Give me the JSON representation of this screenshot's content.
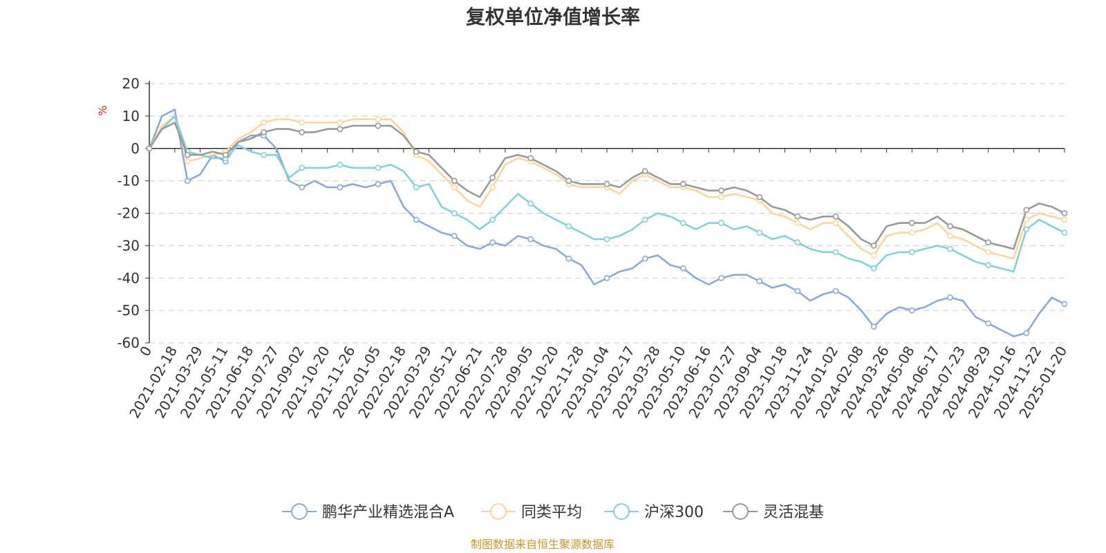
{
  "chart_data": {
    "type": "line",
    "title": "复权单位净值增长率",
    "ylabel": "%",
    "xlabel": "",
    "ylim": [
      -60,
      20
    ],
    "yticks": [
      20,
      10,
      0,
      -10,
      -20,
      -30,
      -40,
      -50,
      -60
    ],
    "grid": true,
    "legend": "bottom",
    "source": "制图数据来自恒生聚源数据库",
    "x_ticks": [
      "0",
      "2021-02-18",
      "2021-03-29",
      "2021-05-11",
      "2021-06-18",
      "2021-07-27",
      "2021-09-02",
      "2021-10-20",
      "2021-11-26",
      "2022-01-05",
      "2022-02-18",
      "2022-03-29",
      "2022-05-12",
      "2022-06-21",
      "2022-07-28",
      "2022-09-05",
      "2022-10-20",
      "2022-11-28",
      "2023-01-04",
      "2023-02-17",
      "2023-03-28",
      "2023-05-10",
      "2023-06-16",
      "2023-07-27",
      "2023-09-04",
      "2023-10-18",
      "2023-11-24",
      "2024-01-02",
      "2024-02-08",
      "2024-03-26",
      "2024-05-08",
      "2024-06-17",
      "2024-07-23",
      "2024-08-29",
      "2024-10-16",
      "2024-11-22",
      "2025-01-20"
    ],
    "x": [
      0,
      0.5,
      1,
      1.5,
      2,
      2.5,
      3,
      3.5,
      4,
      4.5,
      5,
      5.5,
      6,
      6.5,
      7,
      7.5,
      8,
      8.5,
      9,
      9.5,
      10,
      10.5,
      11,
      11.5,
      12,
      12.5,
      13,
      13.5,
      14,
      14.5,
      15,
      15.5,
      16,
      16.5,
      17,
      17.5,
      18,
      18.5,
      19,
      19.5,
      20,
      20.5,
      21,
      21.5,
      22,
      22.5,
      23,
      23.5,
      24,
      24.5,
      25,
      25.5,
      26,
      26.5,
      27,
      27.5,
      28,
      28.5,
      29,
      29.5,
      30,
      30.5,
      31,
      31.5,
      32,
      32.5,
      33,
      33.5,
      34,
      34.5,
      35,
      35.5,
      36
    ],
    "series": [
      {
        "name": "鹏华产业精选混合A",
        "color": "#8aa9d8",
        "values": [
          0,
          10,
          12,
          -10,
          -8,
          -2,
          -4,
          2,
          4,
          4,
          0,
          -10,
          -12,
          -10,
          -12,
          -12,
          -11,
          -12,
          -11,
          -10,
          -18,
          -22,
          -24,
          -26,
          -27,
          -30,
          -31,
          -29,
          -30,
          -27,
          -28,
          -30,
          -31,
          -34,
          -36,
          -42,
          -40,
          -38,
          -37,
          -34,
          -33,
          -36,
          -37,
          -40,
          -42,
          -40,
          -39,
          -39,
          -41,
          -43,
          -42,
          -44,
          -47,
          -45,
          -44,
          -46,
          -50,
          -55,
          -51,
          -49,
          -50,
          -49,
          -47,
          -46,
          -47,
          -52,
          -54,
          -56,
          -58,
          -57,
          -51,
          -46,
          -48
        ]
      },
      {
        "name": "同类平均",
        "color": "#fdd49b",
        "values": [
          0,
          7,
          10,
          -4,
          -3,
          -2,
          -1,
          3,
          5,
          8,
          9,
          9,
          8,
          8,
          8,
          8,
          9,
          9,
          9,
          9,
          5,
          -2,
          -4,
          -8,
          -12,
          -16,
          -18,
          -12,
          -5,
          -3,
          -4,
          -6,
          -8,
          -11,
          -12,
          -12,
          -12,
          -14,
          -10,
          -8,
          -10,
          -12,
          -12,
          -13,
          -15,
          -15,
          -14,
          -15,
          -16,
          -20,
          -21,
          -23,
          -25,
          -23,
          -23,
          -27,
          -31,
          -33,
          -27,
          -26,
          -26,
          -25,
          -23,
          -27,
          -28,
          -30,
          -32,
          -33,
          -34,
          -22,
          -20,
          -21,
          -22
        ]
      },
      {
        "name": "沪深300",
        "color": "#7ed3d7",
        "values": [
          0,
          6,
          10,
          -1,
          -2,
          -3,
          -3,
          1,
          -1,
          -2,
          -2,
          -9,
          -6,
          -6,
          -6,
          -5,
          -6,
          -6,
          -6,
          -5,
          -7,
          -12,
          -11,
          -18,
          -20,
          -22,
          -25,
          -22,
          -18,
          -14,
          -17,
          -20,
          -22,
          -24,
          -26,
          -28,
          -28,
          -27,
          -25,
          -22,
          -20,
          -21,
          -23,
          -25,
          -23,
          -23,
          -25,
          -24,
          -26,
          -28,
          -27,
          -29,
          -31,
          -32,
          -32,
          -34,
          -35,
          -37,
          -33,
          -32,
          -32,
          -31,
          -30,
          -31,
          -33,
          -35,
          -36,
          -37,
          -38,
          -25,
          -22,
          -24,
          -26
        ]
      },
      {
        "name": "灵活混基",
        "color": "#999999",
        "values": [
          0,
          6,
          8,
          -2,
          -2,
          -1,
          -2,
          2,
          3,
          5,
          6,
          6,
          5,
          5,
          6,
          6,
          7,
          7,
          7,
          7,
          4,
          -1,
          -2,
          -6,
          -10,
          -13,
          -15,
          -9,
          -3,
          -2,
          -3,
          -5,
          -7,
          -10,
          -11,
          -11,
          -11,
          -12,
          -9,
          -7,
          -9,
          -11,
          -11,
          -12,
          -13,
          -13,
          -12,
          -13,
          -15,
          -18,
          -19,
          -21,
          -22,
          -21,
          -21,
          -24,
          -28,
          -30,
          -24,
          -23,
          -23,
          -23,
          -21,
          -24,
          -25,
          -27,
          -29,
          -30,
          -31,
          -19,
          -17,
          -18,
          -20
        ]
      }
    ]
  }
}
